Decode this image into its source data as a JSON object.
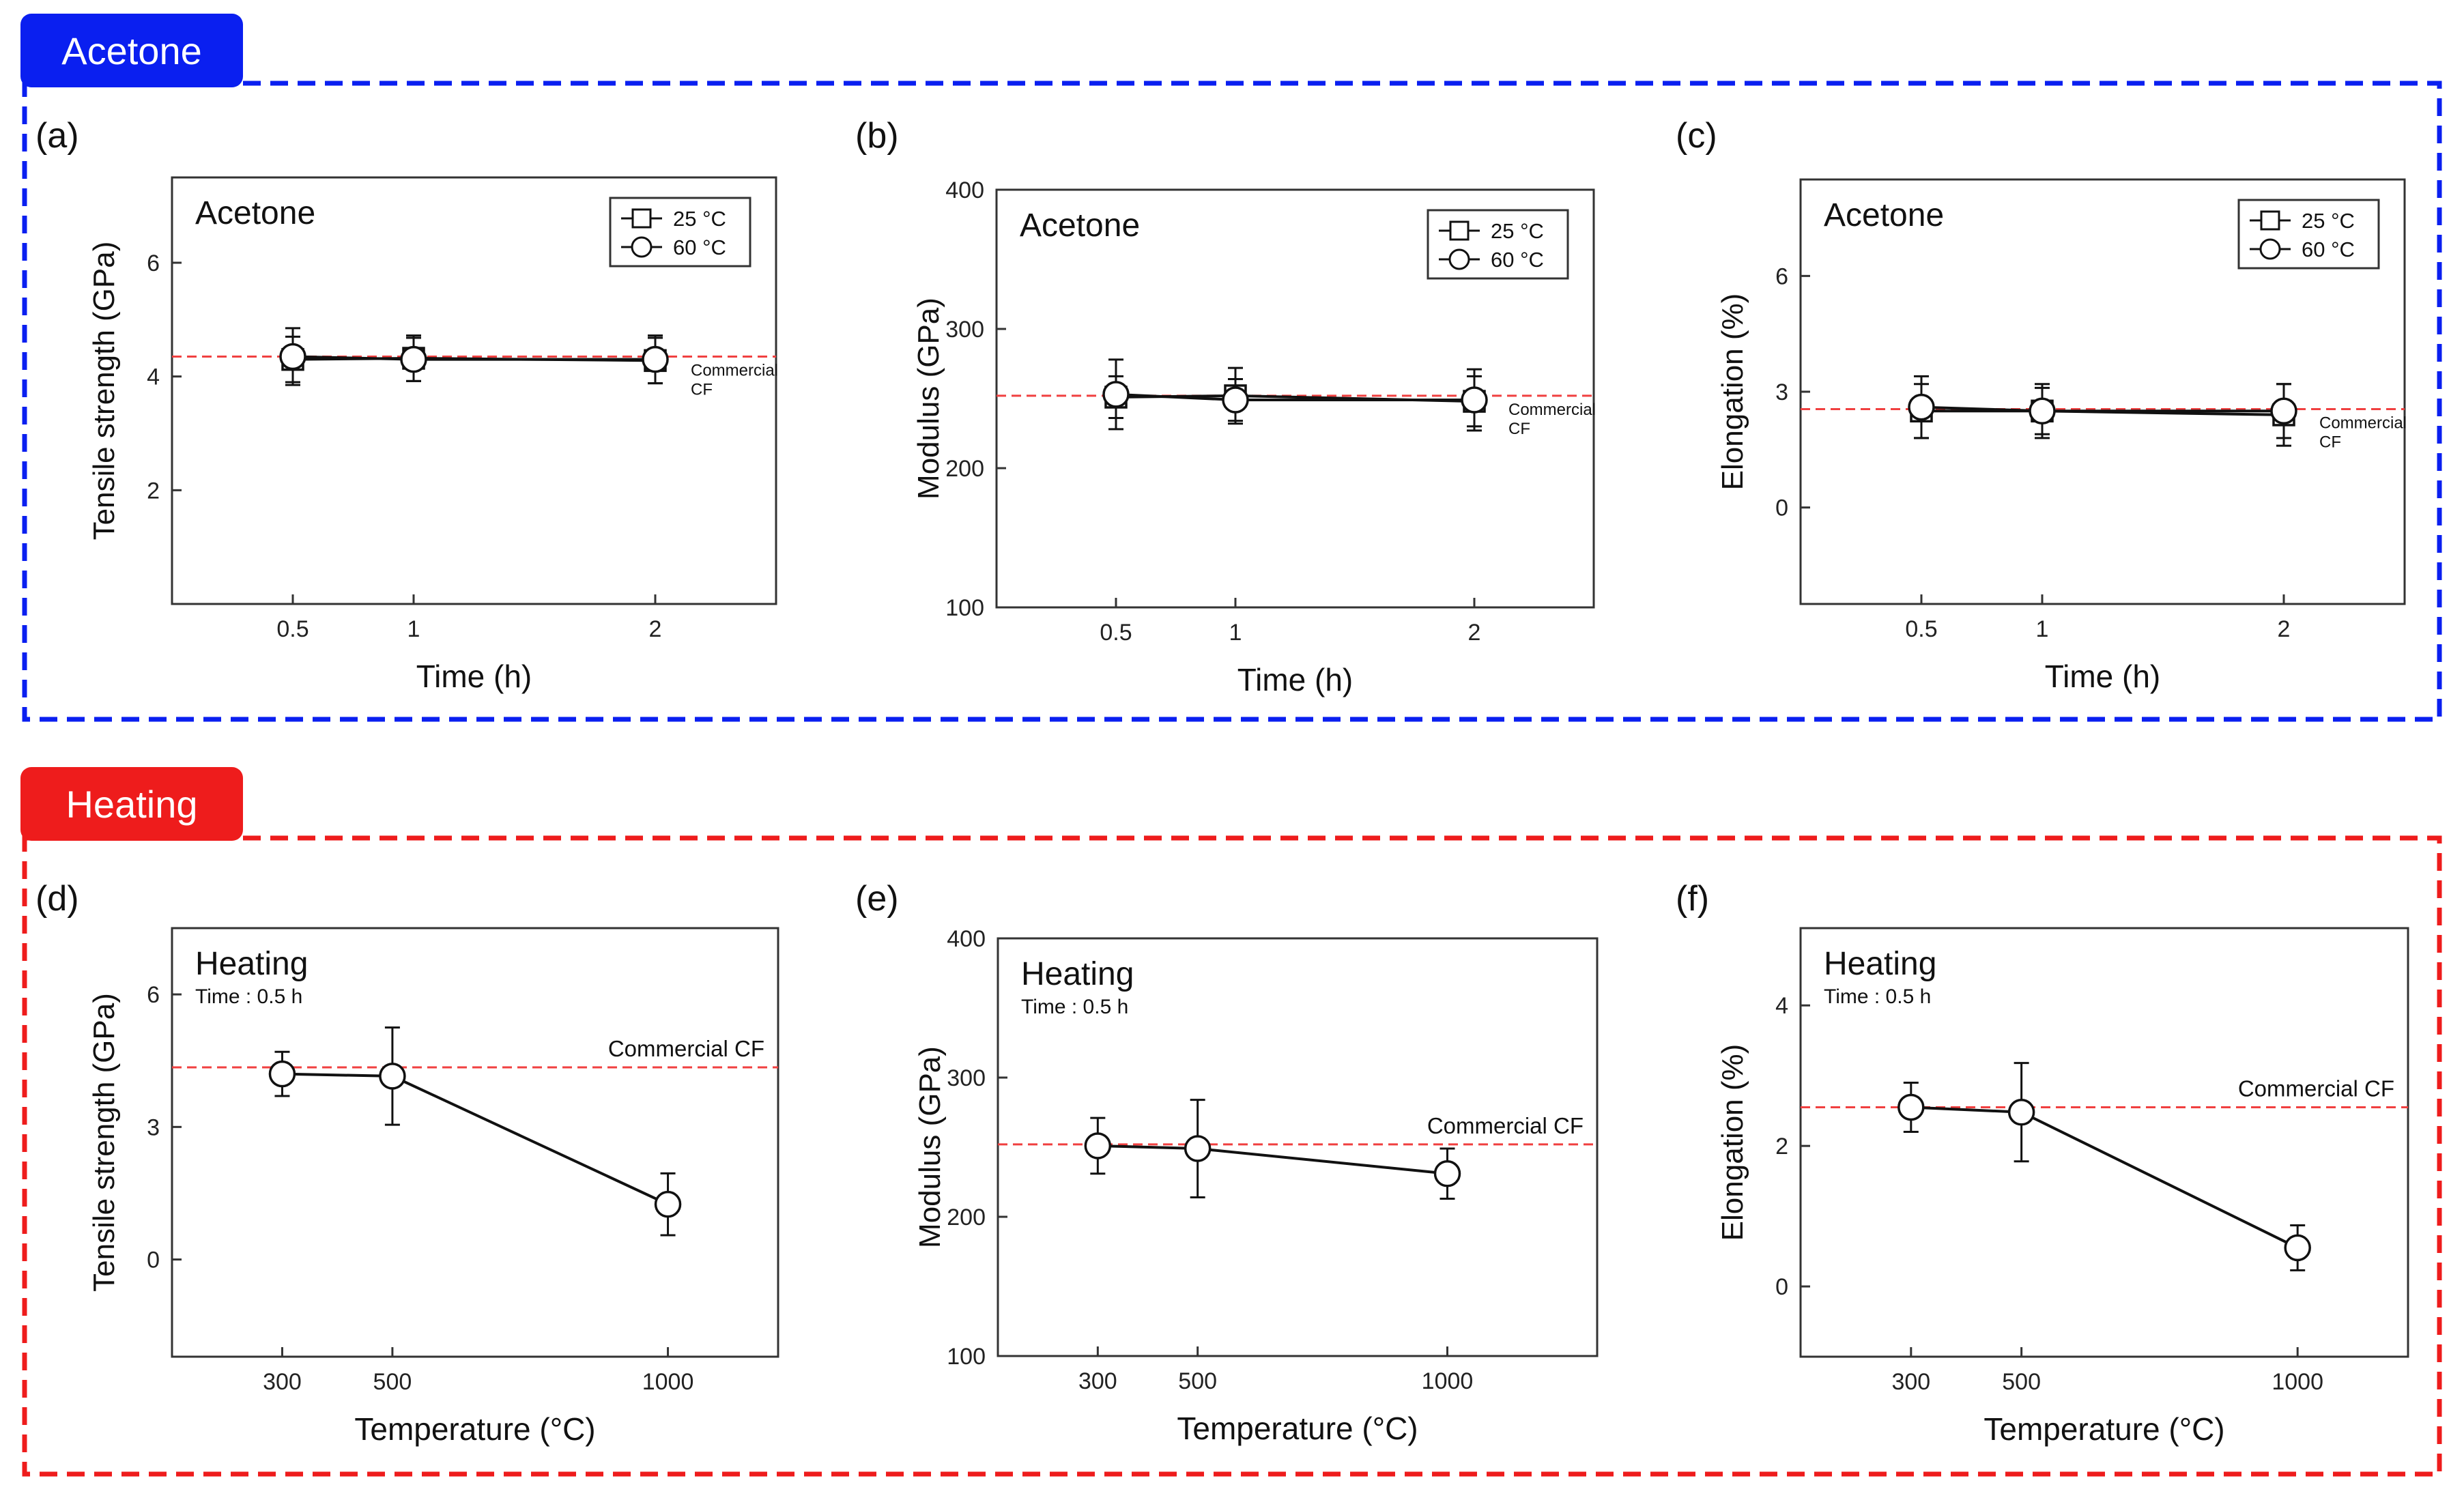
{
  "sections": [
    {
      "label": "Acetone",
      "color": "#0a1ff0"
    },
    {
      "label": "Heating",
      "color": "#ee1c1c"
    }
  ],
  "legend": {
    "entry_25": "25 °C",
    "entry_60": "60 °C"
  },
  "reference": {
    "color": "#f04040"
  },
  "chart_data": [
    {
      "panel": "(a)",
      "type": "line",
      "title": "Acetone",
      "subtitle": "",
      "xlabel": "Time (h)",
      "ylabel": "Tensile strength (GPa)",
      "x": [
        0.5,
        1,
        2
      ],
      "xticks": [
        "0.5",
        "1",
        "2"
      ],
      "xlim": [
        0,
        2.5
      ],
      "ylim": [
        0,
        7.5
      ],
      "yticks": [
        2,
        4,
        6
      ],
      "series": [
        {
          "name": "25 °C",
          "marker": "square",
          "values": [
            4.3,
            4.32,
            4.28
          ],
          "err": [
            0.4,
            0.4,
            0.4
          ]
        },
        {
          "name": "60 °C",
          "marker": "circle",
          "values": [
            4.35,
            4.3,
            4.3
          ],
          "err": [
            0.5,
            0.38,
            0.42
          ]
        }
      ],
      "reference": {
        "value": 4.35,
        "label": [
          "Commercial",
          "CF"
        ]
      },
      "legend": "top-right"
    },
    {
      "panel": "(b)",
      "type": "line",
      "title": "Acetone",
      "subtitle": "",
      "xlabel": "Time (h)",
      "ylabel": "Modulus (GPa)",
      "x": [
        0.5,
        1,
        2
      ],
      "xticks": [
        "0.5",
        "1",
        "2"
      ],
      "xlim": [
        0,
        2.5
      ],
      "ylim": [
        100,
        400
      ],
      "yticks": [
        100,
        200,
        300,
        400
      ],
      "series": [
        {
          "name": "25 °C",
          "marker": "square",
          "values": [
            251,
            252,
            248
          ],
          "err": [
            15,
            20,
            18
          ]
        },
        {
          "name": "60 °C",
          "marker": "circle",
          "values": [
            253,
            249,
            249
          ],
          "err": [
            25,
            15,
            22
          ]
        }
      ],
      "reference": {
        "value": 252,
        "label": [
          "Commercial",
          "CF"
        ]
      },
      "legend": "top-right"
    },
    {
      "panel": "(c)",
      "type": "line",
      "title": "Acetone",
      "subtitle": "",
      "xlabel": "Time (h)",
      "ylabel": "Elongation (%)",
      "x": [
        0.5,
        1,
        2
      ],
      "xticks": [
        "0.5",
        "1",
        "2"
      ],
      "xlim": [
        0,
        2.5
      ],
      "ylim": [
        -2.5,
        8.5
      ],
      "yticks": [
        0,
        3,
        6
      ],
      "series": [
        {
          "name": "25 °C",
          "marker": "square",
          "values": [
            2.5,
            2.5,
            2.4
          ],
          "err": [
            0.7,
            0.6,
            0.8
          ]
        },
        {
          "name": "60 °C",
          "marker": "circle",
          "values": [
            2.6,
            2.5,
            2.5
          ],
          "err": [
            0.8,
            0.7,
            0.7
          ]
        }
      ],
      "reference": {
        "value": 2.55,
        "label": [
          "Commercial",
          "CF"
        ]
      },
      "legend": "top-right"
    },
    {
      "panel": "(d)",
      "type": "line",
      "title": "Heating",
      "subtitle": "Time : 0.5 h",
      "xlabel": "Temperature (°C)",
      "ylabel": "Tensile strength (GPa)",
      "x": [
        300,
        500,
        1000
      ],
      "xticks": [
        "300",
        "500",
        "1000"
      ],
      "xlim": [
        100,
        1200
      ],
      "ylim": [
        -2.2,
        7.5
      ],
      "yticks": [
        0,
        3,
        6
      ],
      "series": [
        {
          "name": "Heating",
          "marker": "circle",
          "values": [
            4.2,
            4.15,
            1.25
          ],
          "err": [
            0.5,
            1.1,
            0.7
          ]
        }
      ],
      "reference": {
        "value": 4.35,
        "label": [
          "Commercial CF"
        ]
      },
      "legend": "none"
    },
    {
      "panel": "(e)",
      "type": "line",
      "title": "Heating",
      "subtitle": "Time : 0.5 h",
      "xlabel": "Temperature (°C)",
      "ylabel": "Modulus (GPa)",
      "x": [
        300,
        500,
        1000
      ],
      "xticks": [
        "300",
        "500",
        "1000"
      ],
      "xlim": [
        100,
        1300
      ],
      "ylim": [
        100,
        400
      ],
      "yticks": [
        100,
        200,
        300,
        400
      ],
      "series": [
        {
          "name": "Heating",
          "marker": "circle",
          "values": [
            251,
            249,
            231
          ],
          "err": [
            20,
            35,
            18
          ]
        }
      ],
      "reference": {
        "value": 252,
        "label": [
          "Commercial CF"
        ]
      },
      "legend": "none"
    },
    {
      "panel": "(f)",
      "type": "line",
      "title": "Heating",
      "subtitle": "Time : 0.5 h",
      "xlabel": "Temperature (°C)",
      "ylabel": "Elongation (%)",
      "x": [
        300,
        500,
        1000
      ],
      "xticks": [
        "300",
        "500",
        "1000"
      ],
      "xlim": [
        100,
        1200
      ],
      "ylim": [
        -1,
        5.1
      ],
      "yticks": [
        0,
        2,
        4
      ],
      "series": [
        {
          "name": "Heating",
          "marker": "circle",
          "values": [
            2.55,
            2.48,
            0.55
          ],
          "err": [
            0.35,
            0.7,
            0.32
          ]
        }
      ],
      "reference": {
        "value": 2.55,
        "label": [
          "Commercial CF"
        ]
      },
      "legend": "none"
    }
  ]
}
